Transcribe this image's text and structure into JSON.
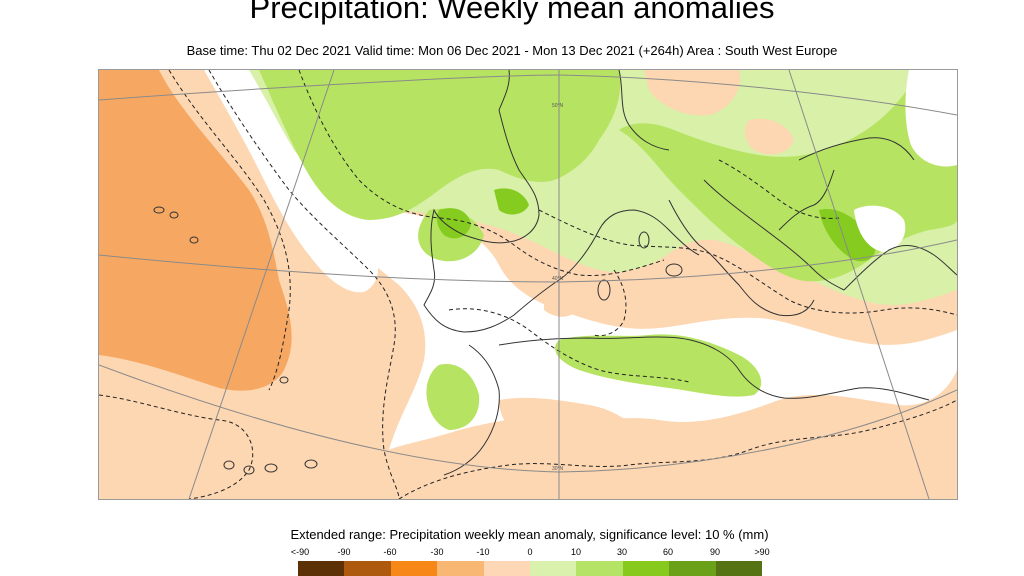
{
  "title": "Precipitation: Weekly mean anomalies",
  "subtitle": "Base time: Thu 02 Dec 2021 Valid time: Mon 06 Dec 2021 - Mon 13 Dec 2021 (+264h) Area : South West Europe",
  "map": {
    "gridline_labels": [
      "50°N",
      "40°N",
      "30°N"
    ],
    "colors": {
      "dry_strong": "#f6a862",
      "dry_weak": "#fdd6b2",
      "neutral": "#ffffff",
      "wet_weak": "#d8f0a8",
      "wet_mid": "#b6e462",
      "wet_strong": "#86cc20",
      "coast": "#333333",
      "grid": "#8a8a8a"
    }
  },
  "legend": {
    "title": "Extended range: Precipitation weekly mean anomaly, significance level: 10 % (mm)",
    "labels": [
      "<-90",
      "-90",
      "-60",
      "-30",
      "-10",
      "0",
      "10",
      "30",
      "60",
      "90",
      ">90"
    ],
    "bins": [
      {
        "color": "#5c3106"
      },
      {
        "color": "#ad5a0e"
      },
      {
        "color": "#f78716"
      },
      {
        "color": "#f8b874"
      },
      {
        "color": "#fdd7b6"
      },
      {
        "color": "#d9f1ac"
      },
      {
        "color": "#b5e365"
      },
      {
        "color": "#87c91c"
      },
      {
        "color": "#6aa118"
      },
      {
        "color": "#557312"
      }
    ]
  }
}
